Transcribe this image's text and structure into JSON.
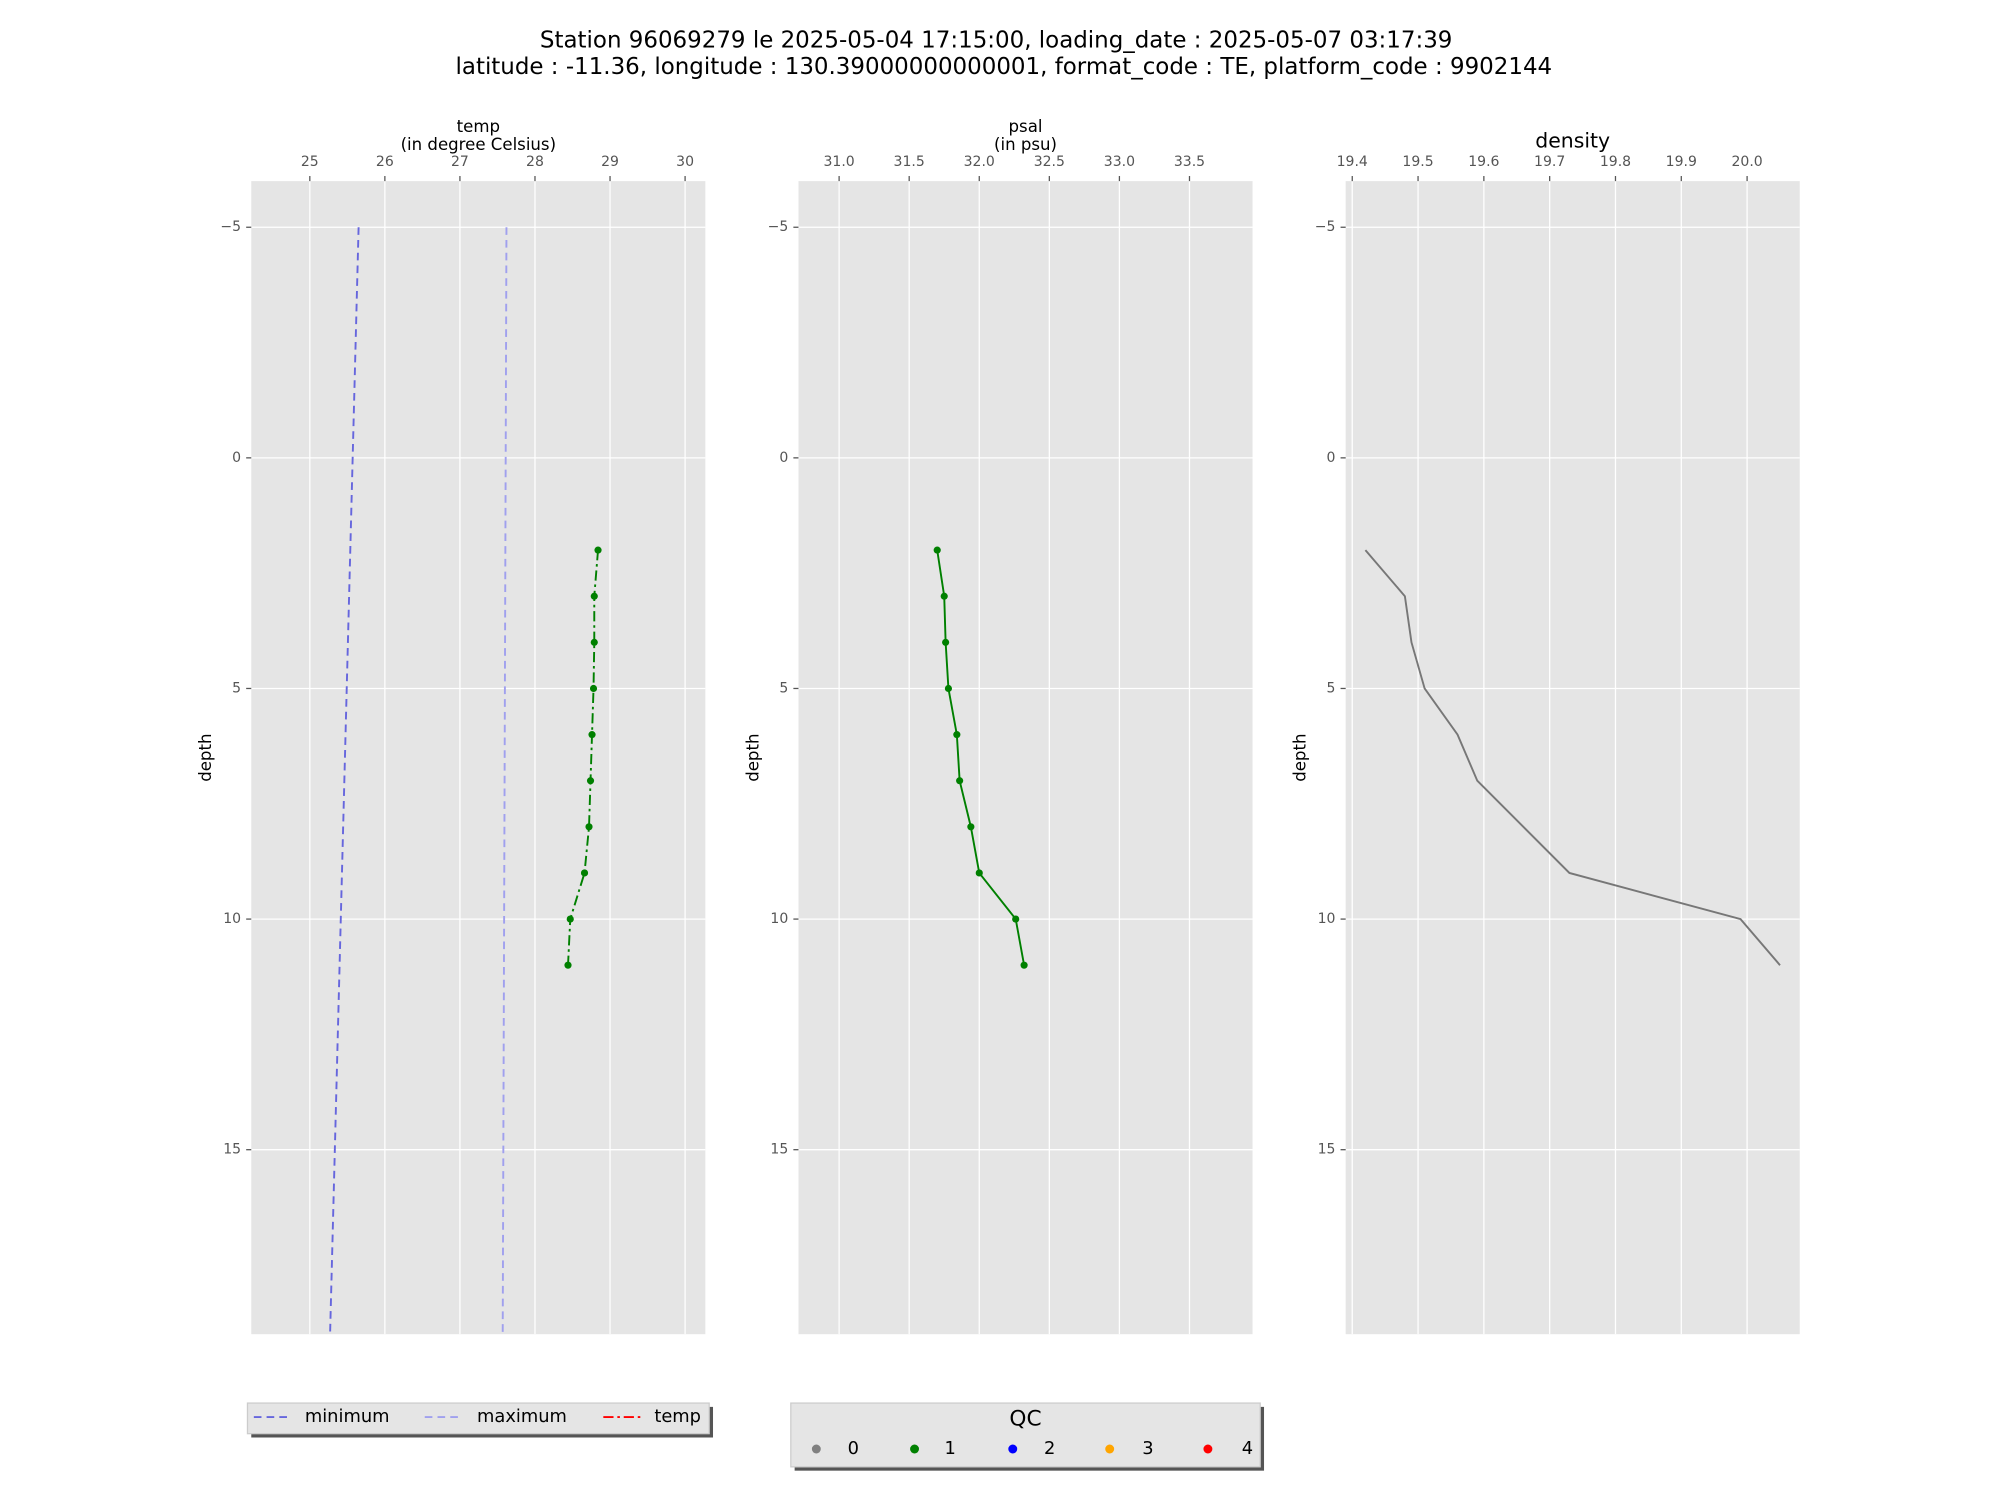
{
  "title": [
    "Station 96069279 le 2025-05-04 17:15:00, loading_date : 2025-05-07 03:17:39",
    "latitude : -11.36, longitude : 130.39000000000001, format_code : TE, platform_code : 9902144"
  ],
  "chart_data": [
    {
      "type": "line",
      "xlabel": [
        "temp",
        "(in degree Celsius)"
      ],
      "ylabel": "depth",
      "xlim": [
        24.22,
        30.27
      ],
      "xticks": [
        25,
        26,
        27,
        28,
        29,
        30
      ],
      "ylim": [
        -6,
        19
      ],
      "invert_y": true,
      "yticks": [
        {
          "value": -5,
          "label": "−5"
        },
        0,
        5,
        10,
        15
      ],
      "grid": true,
      "series": [
        {
          "name": "minimum",
          "color": "#6666dd",
          "linestyle": "dashed",
          "x": [
            25.65,
            25.27
          ],
          "y": [
            -5,
            19
          ]
        },
        {
          "name": "maximum",
          "color": "#a0a0ee",
          "linestyle": "dashed",
          "x": [
            27.62,
            27.57
          ],
          "y": [
            -5,
            19
          ]
        },
        {
          "name": "temp",
          "color": "#ff0000",
          "linestyle": "dashdot",
          "x": [
            28.84,
            28.79,
            28.79,
            28.78,
            28.76,
            28.74,
            28.72,
            28.66,
            28.47,
            28.44
          ],
          "y": [
            2,
            3,
            4,
            5,
            6,
            7,
            8,
            9,
            10,
            11
          ],
          "qc": [
            1,
            1,
            1,
            1,
            1,
            1,
            1,
            1,
            1,
            1
          ]
        }
      ]
    },
    {
      "type": "line",
      "xlabel": [
        "psal",
        "(in psu)"
      ],
      "ylabel": "depth",
      "xlim": [
        30.71,
        33.95
      ],
      "xticks": [
        {
          "value": 31,
          "label": "31.0"
        },
        31.5,
        {
          "value": 32,
          "label": "32.0"
        },
        32.5,
        {
          "value": 33,
          "label": "33.0"
        },
        33.5
      ],
      "ylim": [
        -6,
        19
      ],
      "invert_y": true,
      "yticks": [
        {
          "value": -5,
          "label": "−5"
        },
        0,
        5,
        10,
        15
      ],
      "grid": true,
      "series": [
        {
          "linestyle": "solid",
          "x": [
            31.7,
            31.75,
            31.76,
            31.78,
            31.84,
            31.86,
            31.94,
            32.0,
            32.26,
            32.32
          ],
          "y": [
            2,
            3,
            4,
            5,
            6,
            7,
            8,
            9,
            10,
            11
          ],
          "qc": [
            1,
            1,
            1,
            1,
            1,
            1,
            1,
            1,
            1,
            1
          ]
        }
      ]
    },
    {
      "type": "line",
      "title": "density",
      "ylabel": "depth",
      "xlim": [
        19.39,
        20.08
      ],
      "xticks": [
        19.4,
        19.5,
        19.6,
        19.7,
        19.8,
        19.9,
        {
          "value": 20,
          "label": "20.0"
        }
      ],
      "ylim": [
        -6,
        19
      ],
      "invert_y": true,
      "yticks": [
        {
          "value": -5,
          "label": "−5"
        },
        0,
        5,
        10,
        15
      ],
      "grid": true,
      "series": [
        {
          "color": "#777777",
          "linestyle": "solid",
          "x": [
            19.42,
            19.48,
            19.49,
            19.51,
            19.56,
            19.59,
            19.66,
            19.73,
            19.99,
            20.05
          ],
          "y": [
            2,
            3,
            4,
            5,
            6,
            7,
            8,
            9,
            10,
            11
          ]
        }
      ]
    }
  ],
  "qc_legend": {
    "title": "QC",
    "entries": [
      {
        "label": "0",
        "color": "#808080"
      },
      {
        "label": "1",
        "color": "#008000"
      },
      {
        "label": "2",
        "color": "#0000ff"
      },
      {
        "label": "3",
        "color": "#ffa500"
      },
      {
        "label": "4",
        "color": "#ff0000"
      }
    ]
  }
}
